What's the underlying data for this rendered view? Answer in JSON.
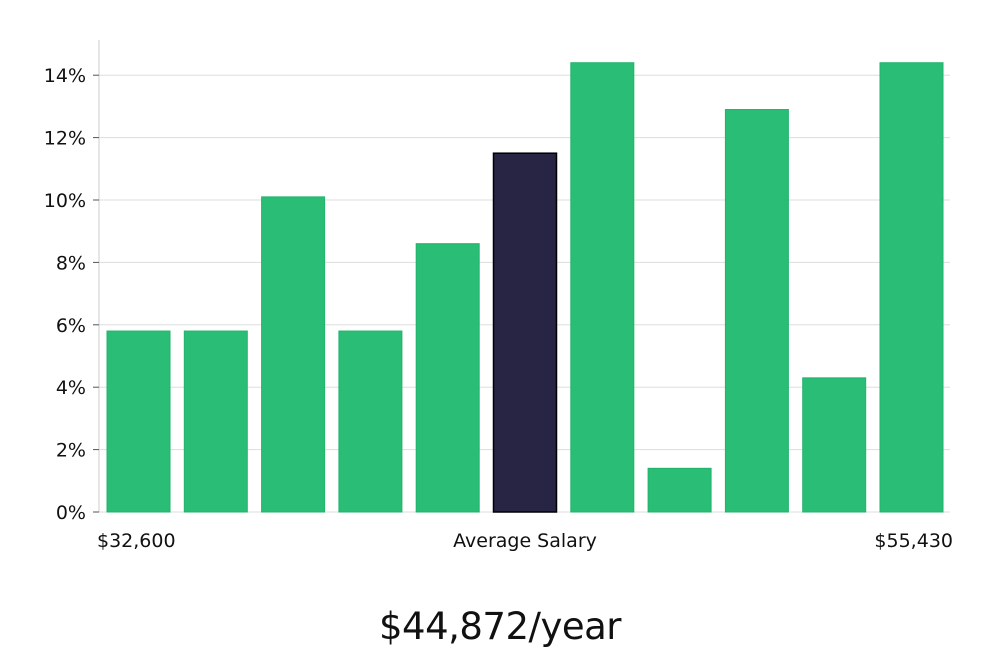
{
  "chart_data": {
    "type": "bar",
    "values": [
      5.8,
      5.8,
      10.1,
      5.8,
      8.6,
      11.5,
      14.4,
      1.4,
      12.9,
      4.3,
      14.4
    ],
    "highlight_index": 5,
    "ylim": [
      0,
      15
    ],
    "y_ticks": [
      "0%",
      "2%",
      "4%",
      "6%",
      "8%",
      "10%",
      "12%",
      "14%"
    ],
    "y_tick_values": [
      0,
      2,
      4,
      6,
      8,
      10,
      12,
      14
    ],
    "x_min_label": "$32,600",
    "x_center_label": "Average Salary",
    "x_max_label": "$55,430",
    "grid": true,
    "colors": {
      "bar": "#2abd75",
      "highlight": "#272444",
      "grid": "#dddddd",
      "axis": "#cccccc"
    }
  },
  "summary": {
    "salary": "$44,872/year"
  }
}
